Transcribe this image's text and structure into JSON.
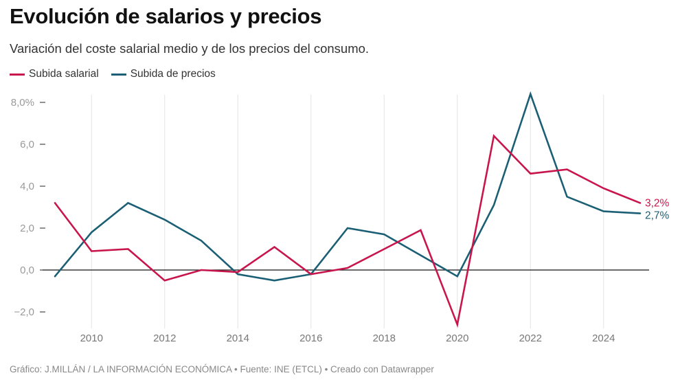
{
  "header": {
    "title": "Evolución de salarios y precios",
    "subtitle": "Variación del coste salarial medio y de los precios del consumo."
  },
  "footer": {
    "credit": "Gráfico: J.MILLÁN / LA INFORMACIÓN ECONÓMICA • Fuente: INE (ETCL) • Creado con Datawrapper"
  },
  "chart_data": {
    "type": "line",
    "title": "Evolución de salarios y precios",
    "subtitle": "Variación del coste salarial medio y de los precios del consumo.",
    "xlabel": "",
    "ylabel": "",
    "x": [
      2009,
      2010,
      2011,
      2012,
      2013,
      2014,
      2015,
      2016,
      2017,
      2018,
      2019,
      2020,
      2021,
      2022,
      2023,
      2024,
      2025
    ],
    "xlim": [
      2009,
      2025
    ],
    "ylim": [
      -2.8,
      8.4
    ],
    "x_ticks": [
      2010,
      2012,
      2014,
      2016,
      2018,
      2020,
      2022,
      2024
    ],
    "x_tick_labels": [
      "2010",
      "2012",
      "2014",
      "2016",
      "2018",
      "2020",
      "2022",
      "2024"
    ],
    "y_ticks": [
      8,
      6,
      4,
      2,
      0,
      -2
    ],
    "y_tick_labels": [
      "8,0%",
      "6,0",
      "4,0",
      "2,0",
      "0,0",
      "−2,0"
    ],
    "grid": "vertical",
    "zero_line": true,
    "legend_position": "top-left",
    "series": [
      {
        "name": "Subida salarial",
        "color": "#c8164d",
        "values": [
          3.2,
          0.9,
          1.0,
          -0.5,
          0.0,
          -0.1,
          1.1,
          -0.2,
          0.1,
          1.0,
          1.9,
          -2.6,
          6.4,
          4.6,
          4.8,
          3.9,
          3.2
        ],
        "end_label": "3,2%"
      },
      {
        "name": "Subida de precios",
        "color": "#1b5f74",
        "values": [
          -0.3,
          1.8,
          3.2,
          2.4,
          1.4,
          -0.2,
          -0.5,
          -0.2,
          2.0,
          1.7,
          0.7,
          -0.3,
          3.1,
          8.4,
          3.5,
          2.8,
          2.7
        ],
        "end_label": "2,7%"
      }
    ]
  }
}
